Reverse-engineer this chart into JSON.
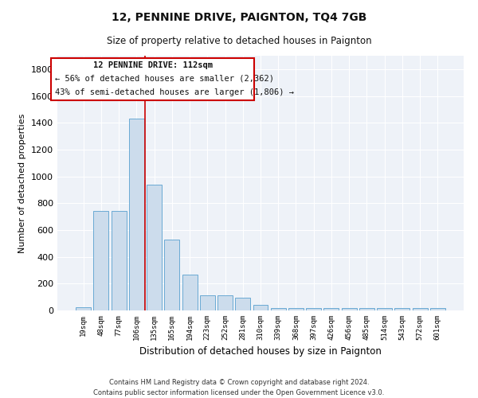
{
  "title": "12, PENNINE DRIVE, PAIGNTON, TQ4 7GB",
  "subtitle": "Size of property relative to detached houses in Paignton",
  "xlabel": "Distribution of detached houses by size in Paignton",
  "ylabel": "Number of detached properties",
  "bar_color": "#ccdcec",
  "bar_edgecolor": "#6aaad4",
  "categories": [
    "19sqm",
    "48sqm",
    "77sqm",
    "106sqm",
    "135sqm",
    "165sqm",
    "194sqm",
    "223sqm",
    "252sqm",
    "281sqm",
    "310sqm",
    "339sqm",
    "368sqm",
    "397sqm",
    "426sqm",
    "456sqm",
    "485sqm",
    "514sqm",
    "543sqm",
    "572sqm",
    "601sqm"
  ],
  "values": [
    25,
    740,
    740,
    1430,
    940,
    530,
    265,
    110,
    110,
    95,
    40,
    20,
    20,
    15,
    15,
    15,
    15,
    15,
    15,
    15,
    15
  ],
  "vline_x": 3.5,
  "vline_color": "#cc0000",
  "annotation_title": "12 PENNINE DRIVE: 112sqm",
  "annotation_line1": "← 56% of detached houses are smaller (2,362)",
  "annotation_line2": "43% of semi-detached houses are larger (1,806) →",
  "footer_line1": "Contains HM Land Registry data © Crown copyright and database right 2024.",
  "footer_line2": "Contains public sector information licensed under the Open Government Licence v3.0.",
  "background_color": "#ffffff",
  "plot_background": "#eef2f8",
  "ylim": [
    0,
    1900
  ],
  "yticks": [
    0,
    200,
    400,
    600,
    800,
    1000,
    1200,
    1400,
    1600,
    1800
  ]
}
